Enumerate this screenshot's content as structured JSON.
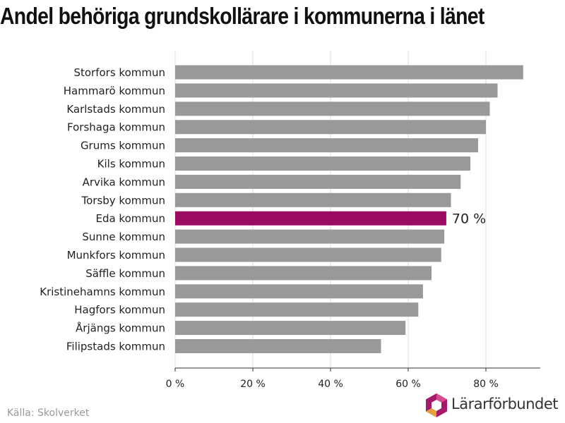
{
  "chart_data": {
    "type": "bar",
    "orientation": "horizontal",
    "title": "Andel behöriga grundskollärare i kommunerna i länet",
    "categories": [
      "Storfors kommun",
      "Hammarö kommun",
      "Karlstads kommun",
      "Forshaga kommun",
      "Grums kommun",
      "Kils kommun",
      "Arvika kommun",
      "Torsby kommun",
      "Eda kommun",
      "Sunne kommun",
      "Munkfors kommun",
      "Säffle kommun",
      "Kristinehamns kommun",
      "Hagfors kommun",
      "Årjängs kommun",
      "Filipstads kommun"
    ],
    "values": [
      89.6,
      83,
      81,
      80,
      78,
      76,
      73.5,
      71,
      69.8,
      69.3,
      68.5,
      66,
      63.8,
      62.6,
      59.3,
      53
    ],
    "highlight": {
      "category": "Eda kommun",
      "label": "70 %",
      "color": "#9c0b62"
    },
    "bar_color": "#999999",
    "xlim": [
      0,
      94
    ],
    "xticks": [
      0,
      20,
      40,
      60,
      80
    ],
    "xtick_labels": [
      "0 %",
      "20 %",
      "40 %",
      "60 %",
      "80 %"
    ],
    "grid": true
  },
  "footer": {
    "source": "Källa: Skolverket",
    "logo_text": "Lärarförbundet"
  }
}
